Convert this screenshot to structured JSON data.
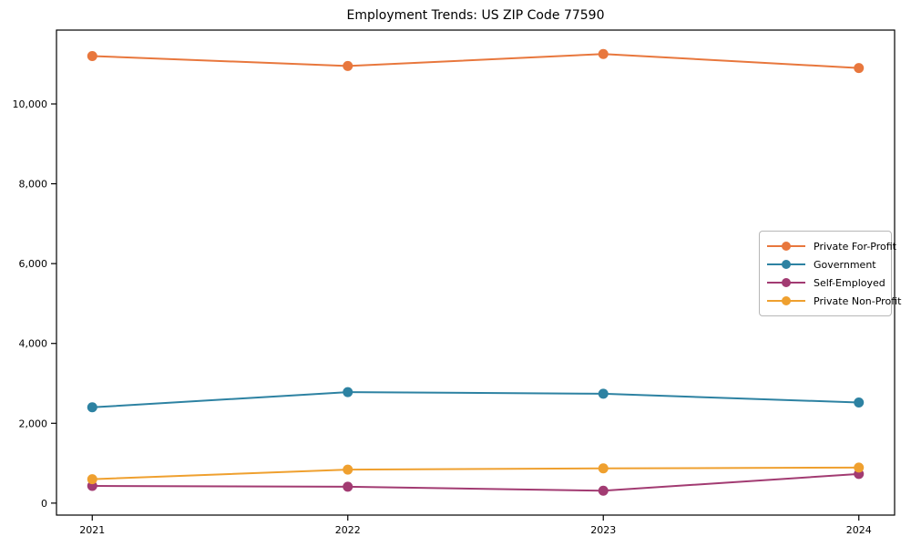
{
  "chart_data": {
    "type": "line",
    "title": "Employment Trends: US ZIP Code 77590",
    "xlabel": "",
    "ylabel": "",
    "x": [
      2021,
      2022,
      2023,
      2024
    ],
    "x_tick_labels": [
      "2021",
      "2022",
      "2023",
      "2024"
    ],
    "y_ticks": [
      0,
      2000,
      4000,
      6000,
      8000,
      10000
    ],
    "y_tick_labels": [
      "0",
      "2,000",
      "4,000",
      "6,000",
      "8,000",
      "10,000"
    ],
    "xlim": [
      2020.86,
      2024.14
    ],
    "ylim": [
      -300,
      11850
    ],
    "grid": false,
    "legend_position": "center-right",
    "series": [
      {
        "name": "Private For-Profit",
        "color": "#e8773d",
        "values": [
          11200,
          10950,
          11250,
          10900
        ]
      },
      {
        "name": "Government",
        "color": "#2d82a2",
        "values": [
          2400,
          2780,
          2740,
          2520
        ]
      },
      {
        "name": "Self-Employed",
        "color": "#a23b72",
        "values": [
          430,
          410,
          310,
          730
        ]
      },
      {
        "name": "Private Non-Profit",
        "color": "#efa02f",
        "values": [
          600,
          840,
          870,
          890
        ]
      }
    ]
  }
}
